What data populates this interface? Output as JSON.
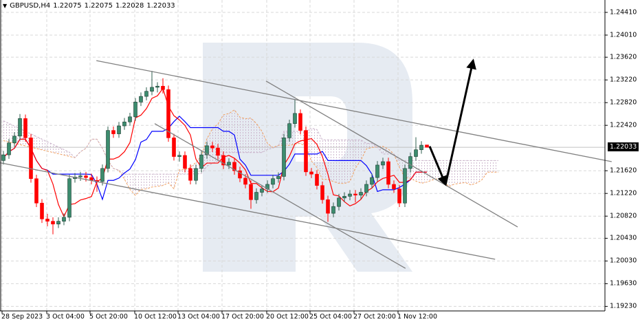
{
  "header": {
    "symbol": "GBPUSD,H4",
    "open": "1.22075",
    "high": "1.22075",
    "low": "1.22028",
    "close": "1.22033"
  },
  "current_price_label": "1.22033",
  "colors": {
    "bull": "#2f5f4f",
    "bear": "#ff0000",
    "tenkan": "#ff0000",
    "kijun": "#0000ff",
    "span_a": "#f0a060",
    "span_b": "#c8b0c8",
    "trendline": "#808080",
    "arrow": "#000000",
    "grid": "#d8d8d8",
    "watermark": "#e6ebf2"
  },
  "chart_data": {
    "type": "candlestick",
    "title": "GBPUSD,H4",
    "ylim": [
      1.1923,
      1.2465
    ],
    "y_ticks": [
      "1.24410",
      "1.24010",
      "1.23620",
      "1.23220",
      "1.22820",
      "1.22420",
      "1.21620",
      "1.21220",
      "1.20820",
      "1.20430",
      "1.20030",
      "1.19630",
      "1.19230"
    ],
    "x_ticks": [
      "28 Sep 2023",
      "3 Oct 04:00",
      "5 Oct 20:00",
      "10 Oct 12:00",
      "13 Oct 04:00",
      "17 Oct 20:00",
      "20 Oct 12:00",
      "25 Oct 04:00",
      "27 Oct 20:00",
      "1 Nov 12:00"
    ],
    "ohlc": [
      [
        1.218,
        1.2197,
        1.2173,
        1.219
      ],
      [
        1.219,
        1.2218,
        1.2183,
        1.2211
      ],
      [
        1.2211,
        1.223,
        1.2204,
        1.2223
      ],
      [
        1.2223,
        1.2262,
        1.2216,
        1.2254
      ],
      [
        1.2254,
        1.2261,
        1.2213,
        1.222
      ],
      [
        1.222,
        1.2227,
        1.2141,
        1.2148
      ],
      [
        1.2148,
        1.2155,
        1.2098,
        1.2105
      ],
      [
        1.2105,
        1.2112,
        1.207,
        1.2077
      ],
      [
        1.2077,
        1.2086,
        1.2064,
        1.2073
      ],
      [
        1.2073,
        1.208,
        1.205,
        1.2068
      ],
      [
        1.2068,
        1.208,
        1.2061,
        1.2073
      ],
      [
        1.2073,
        1.2087,
        1.2066,
        1.208
      ],
      [
        1.208,
        1.2155,
        1.2073,
        1.2148
      ],
      [
        1.2148,
        1.2158,
        1.2141,
        1.2151
      ],
      [
        1.2151,
        1.216,
        1.2144,
        1.2153
      ],
      [
        1.2153,
        1.216,
        1.2143,
        1.215
      ],
      [
        1.215,
        1.2157,
        1.2138,
        1.2145
      ],
      [
        1.2145,
        1.2152,
        1.2125,
        1.2143
      ],
      [
        1.2143,
        1.2173,
        1.2136,
        1.2166
      ],
      [
        1.2166,
        1.224,
        1.2159,
        1.2233
      ],
      [
        1.2233,
        1.224,
        1.222,
        1.2227
      ],
      [
        1.2227,
        1.2248,
        1.222,
        1.2241
      ],
      [
        1.2241,
        1.2255,
        1.2234,
        1.2248
      ],
      [
        1.2248,
        1.2264,
        1.2241,
        1.2257
      ],
      [
        1.2257,
        1.229,
        1.225,
        1.2283
      ],
      [
        1.2283,
        1.23,
        1.2276,
        1.2293
      ],
      [
        1.2293,
        1.2309,
        1.2286,
        1.2302
      ],
      [
        1.2302,
        1.2338,
        1.2295,
        1.2309
      ],
      [
        1.2309,
        1.2318,
        1.23,
        1.2311
      ],
      [
        1.2311,
        1.2325,
        1.2298,
        1.2305
      ],
      [
        1.2305,
        1.2312,
        1.2213,
        1.222
      ],
      [
        1.222,
        1.2227,
        1.218,
        1.2187
      ],
      [
        1.2187,
        1.2196,
        1.2178,
        1.2189
      ],
      [
        1.2189,
        1.2196,
        1.2159,
        1.2166
      ],
      [
        1.2166,
        1.2173,
        1.2138,
        1.2145
      ],
      [
        1.2145,
        1.2173,
        1.2138,
        1.2166
      ],
      [
        1.2166,
        1.2197,
        1.2159,
        1.219
      ],
      [
        1.219,
        1.2213,
        1.2183,
        1.2206
      ],
      [
        1.2206,
        1.2213,
        1.2195,
        1.2202
      ],
      [
        1.2202,
        1.2209,
        1.2182,
        1.2189
      ],
      [
        1.2189,
        1.2196,
        1.2165,
        1.2172
      ],
      [
        1.2172,
        1.2184,
        1.2165,
        1.2177
      ],
      [
        1.2177,
        1.2184,
        1.2155,
        1.2162
      ],
      [
        1.2162,
        1.2169,
        1.2142,
        1.2149
      ],
      [
        1.2149,
        1.2156,
        1.2131,
        1.2138
      ],
      [
        1.2138,
        1.2145,
        1.2095,
        1.2111
      ],
      [
        1.2111,
        1.2131,
        1.2104,
        1.2124
      ],
      [
        1.2124,
        1.2137,
        1.2117,
        1.213
      ],
      [
        1.213,
        1.2145,
        1.2123,
        1.2138
      ],
      [
        1.2138,
        1.2155,
        1.2131,
        1.2148
      ],
      [
        1.2148,
        1.2159,
        1.2141,
        1.2152
      ],
      [
        1.2152,
        1.2227,
        1.2145,
        1.222
      ],
      [
        1.222,
        1.2252,
        1.2213,
        1.2245
      ],
      [
        1.2245,
        1.2288,
        1.2238,
        1.2263
      ],
      [
        1.2263,
        1.227,
        1.2226,
        1.2233
      ],
      [
        1.2233,
        1.224,
        1.2153,
        1.216
      ],
      [
        1.216,
        1.2167,
        1.2149,
        1.2156
      ],
      [
        1.2156,
        1.2163,
        1.2129,
        1.2136
      ],
      [
        1.2136,
        1.2143,
        1.2104,
        1.2111
      ],
      [
        1.2111,
        1.2118,
        1.2072,
        1.2087
      ],
      [
        1.2087,
        1.2106,
        1.208,
        1.2099
      ],
      [
        1.2099,
        1.2121,
        1.2092,
        1.2114
      ],
      [
        1.2114,
        1.2124,
        1.2107,
        1.2117
      ],
      [
        1.2117,
        1.2128,
        1.211,
        1.2121
      ],
      [
        1.2121,
        1.2128,
        1.2106,
        1.2119
      ],
      [
        1.2119,
        1.2131,
        1.2112,
        1.2124
      ],
      [
        1.2124,
        1.2145,
        1.2117,
        1.2138
      ],
      [
        1.2138,
        1.2157,
        1.2131,
        1.215
      ],
      [
        1.215,
        1.2179,
        1.2143,
        1.2172
      ],
      [
        1.2172,
        1.2185,
        1.2165,
        1.2178
      ],
      [
        1.2178,
        1.2185,
        1.2131,
        1.2138
      ],
      [
        1.2138,
        1.2145,
        1.2123,
        1.213
      ],
      [
        1.213,
        1.2137,
        1.2098,
        1.2105
      ],
      [
        1.2105,
        1.2173,
        1.2098,
        1.2166
      ],
      [
        1.2166,
        1.2194,
        1.2159,
        1.2187
      ],
      [
        1.2187,
        1.2221,
        1.218,
        1.2199
      ],
      [
        1.2199,
        1.2214,
        1.2192,
        1.2207
      ],
      [
        1.22075,
        1.22075,
        1.22028,
        1.22033
      ]
    ],
    "trendlines": [
      {
        "from": [
          16.9,
          1.2356
        ],
        "to": [
          110.6,
          1.2178
        ]
      },
      {
        "from": [
          -0.6,
          1.2176
        ],
        "to": [
          89.4,
          1.2006
        ]
      },
      {
        "from": [
          47.75,
          1.232
        ],
        "to": [
          93.5,
          1.2063
        ]
      },
      {
        "from": [
          27.5,
          1.2245
        ],
        "to": [
          73.1,
          1.199
        ]
      }
    ],
    "forecast_arrows": [
      {
        "from": [
          77.5,
          1.2205
        ],
        "to": [
          80.4,
          1.2138
        ]
      },
      {
        "from": [
          80.4,
          1.2138
        ],
        "to": [
          85.4,
          1.2356
        ]
      }
    ]
  }
}
